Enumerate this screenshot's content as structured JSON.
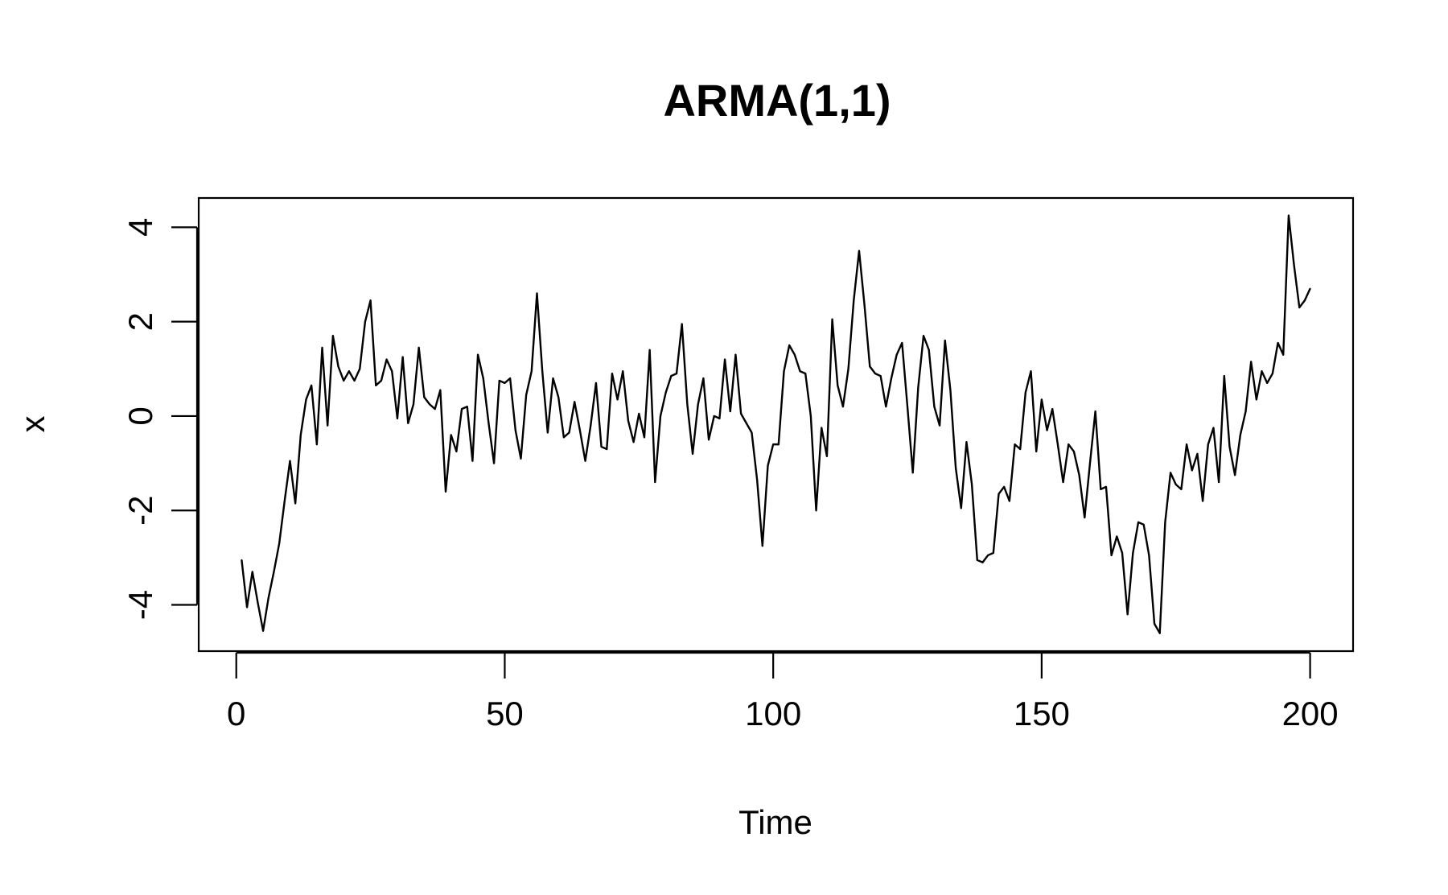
{
  "chart_data": {
    "type": "line",
    "title": "ARMA(1,1)",
    "xlabel": "Time",
    "ylabel": "x",
    "xlim": [
      -7,
      208
    ],
    "ylim": [
      -4.98,
      4.62
    ],
    "xticks": [
      0,
      50,
      100,
      150,
      200
    ],
    "xtick_labels": [
      "0",
      "50",
      "100",
      "150",
      "200"
    ],
    "yticks": [
      -4,
      -2,
      0,
      2,
      4
    ],
    "ytick_labels": [
      "-4",
      "-2",
      "0",
      "2",
      "4"
    ],
    "grid": false,
    "legend": "none",
    "line_color": "#000000",
    "series": [
      {
        "x": [
          1,
          2,
          3,
          4,
          5,
          6,
          7,
          8,
          9,
          10,
          11,
          12,
          13,
          14,
          15,
          16,
          17,
          18,
          19,
          20,
          21,
          22,
          23,
          24,
          25,
          26,
          27,
          28,
          29,
          30,
          31,
          32,
          33,
          34,
          35,
          36,
          37,
          38,
          39,
          40,
          41,
          42,
          43,
          44,
          45,
          46,
          47,
          48,
          49,
          50,
          51,
          52,
          53,
          54,
          55,
          56,
          57,
          58,
          59,
          60,
          61,
          62,
          63,
          64,
          65,
          66,
          67,
          68,
          69,
          70,
          71,
          72,
          73,
          74,
          75,
          76,
          77,
          78,
          79,
          80,
          81,
          82,
          83,
          84,
          85,
          86,
          87,
          88,
          89,
          90,
          91,
          92,
          93,
          94,
          95,
          96,
          97,
          98,
          99,
          100,
          101,
          102,
          103,
          104,
          105,
          106,
          107,
          108,
          109,
          110,
          111,
          112,
          113,
          114,
          115,
          116,
          117,
          118,
          119,
          120,
          121,
          122,
          123,
          124,
          125,
          126,
          127,
          128,
          129,
          130,
          131,
          132,
          133,
          134,
          135,
          136,
          137,
          138,
          139,
          140,
          141,
          142,
          143,
          144,
          145,
          146,
          147,
          148,
          149,
          150,
          151,
          152,
          153,
          154,
          155,
          156,
          157,
          158,
          159,
          160,
          161,
          162,
          163,
          164,
          165,
          166,
          167,
          168,
          169,
          170,
          171,
          172,
          173,
          174,
          175,
          176,
          177,
          178,
          179,
          180,
          181,
          182,
          183,
          184,
          185,
          186,
          187,
          188,
          189,
          190,
          191,
          192,
          193,
          194,
          195,
          196,
          197,
          198,
          199,
          200
        ],
        "values": [
          -3.05,
          -4.05,
          -3.3,
          -3.95,
          -4.55,
          -3.85,
          -3.3,
          -2.7,
          -1.8,
          -0.95,
          -1.85,
          -0.4,
          0.35,
          0.65,
          -0.6,
          1.45,
          -0.2,
          1.7,
          1.05,
          0.75,
          0.95,
          0.75,
          1.0,
          2.0,
          2.45,
          0.65,
          0.75,
          1.2,
          0.95,
          -0.05,
          1.25,
          -0.15,
          0.25,
          1.45,
          0.4,
          0.25,
          0.15,
          0.55,
          -1.6,
          -0.4,
          -0.75,
          0.15,
          0.2,
          -0.95,
          1.3,
          0.8,
          -0.15,
          -1.0,
          0.75,
          0.7,
          0.8,
          -0.3,
          -0.9,
          0.45,
          0.95,
          2.6,
          0.95,
          -0.35,
          0.8,
          0.4,
          -0.45,
          -0.35,
          0.3,
          -0.3,
          -0.95,
          -0.2,
          0.7,
          -0.65,
          -0.7,
          0.9,
          0.35,
          0.95,
          -0.1,
          -0.55,
          0.05,
          -0.45,
          1.4,
          -1.4,
          0.0,
          0.5,
          0.85,
          0.9,
          1.95,
          0.25,
          -0.8,
          0.25,
          0.8,
          -0.5,
          0.0,
          -0.05,
          1.2,
          0.1,
          1.3,
          0.05,
          -0.15,
          -0.35,
          -1.35,
          -2.75,
          -1.05,
          -0.6,
          -0.6,
          0.95,
          1.5,
          1.3,
          0.95,
          0.9,
          0.0,
          -2.0,
          -0.25,
          -0.85,
          2.05,
          0.65,
          0.2,
          1.0,
          2.45,
          3.5,
          2.35,
          1.05,
          0.9,
          0.85,
          0.2,
          0.8,
          1.3,
          1.55,
          0.2,
          -1.2,
          0.6,
          1.7,
          1.4,
          0.2,
          -0.2,
          1.6,
          0.55,
          -1.1,
          -1.95,
          -0.55,
          -1.45,
          -3.05,
          -3.1,
          -2.95,
          -2.9,
          -1.65,
          -1.5,
          -1.8,
          -0.6,
          -0.7,
          0.5,
          0.95,
          -0.75,
          0.35,
          -0.3,
          0.15,
          -0.6,
          -1.4,
          -0.6,
          -0.75,
          -1.25,
          -2.15,
          -1.0,
          0.1,
          -1.55,
          -1.5,
          -2.95,
          -2.55,
          -2.9,
          -4.2,
          -2.9,
          -2.25,
          -2.3,
          -2.95,
          -4.4,
          -4.6,
          -2.25,
          -1.2,
          -1.45,
          -1.55,
          -0.6,
          -1.15,
          -0.8,
          -1.8,
          -0.6,
          -0.25,
          -1.4,
          0.85,
          -0.65,
          -1.25,
          -0.4,
          0.1,
          1.15,
          0.35,
          0.95,
          0.7,
          0.9,
          1.55,
          1.3,
          4.25,
          3.2,
          2.3,
          2.45,
          2.7
        ]
      }
    ]
  }
}
